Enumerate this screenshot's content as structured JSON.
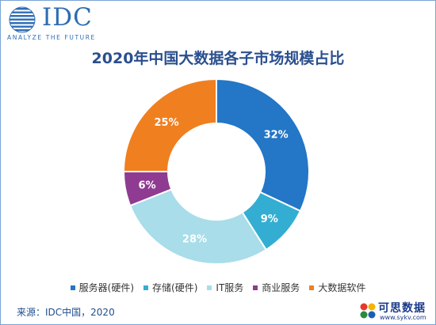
{
  "logo": {
    "brand": "IDC",
    "tagline": "ANALYZE THE FUTURE"
  },
  "title": "2020年中国大数据各子市场规模占比",
  "chart_data": {
    "type": "pie",
    "title": "2020年中国大数据各子市场规模占比",
    "donut": true,
    "start": "12 o'clock, clockwise",
    "legend_position": "bottom",
    "categories": [
      "服务器(硬件)",
      "存储(硬件)",
      "IT服务",
      "商业服务",
      "大数据软件"
    ],
    "values": [
      32,
      9,
      28,
      6,
      25
    ],
    "labels": [
      "32%",
      "9%",
      "28%",
      "6%",
      "25%"
    ],
    "colors": [
      "#2476c6",
      "#33aed2",
      "#a8dde9",
      "#8f3b92",
      "#f07f1f"
    ],
    "label_colors": [
      "#ffffff",
      "#ffffff",
      "#ffffff",
      "#ffffff",
      "#ffffff"
    ]
  },
  "source": "来源：IDC中国，2020",
  "watermark": {
    "text": "可思数据",
    "url": "www.sykv.com"
  }
}
